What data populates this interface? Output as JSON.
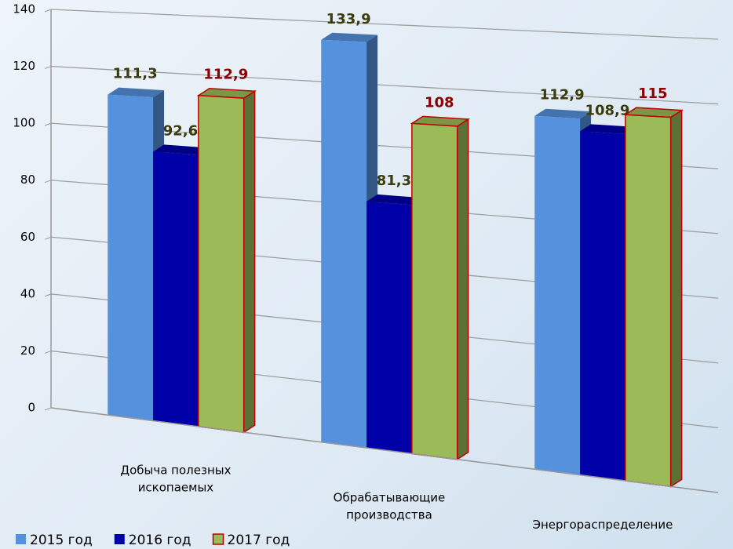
{
  "chart_data": {
    "type": "bar3d",
    "categories": [
      [
        "Добыча полезных",
        "ископаемых"
      ],
      [
        "Обрабатывающие",
        "производства"
      ],
      [
        "Энергораспределение"
      ]
    ],
    "series": [
      {
        "name": "2015 год",
        "color": "#5591dc",
        "label_color": "#3b3b0c",
        "values": [
          111.3,
          133.9,
          112.9
        ],
        "value_labels": [
          "111,3",
          "133,9",
          "112,9"
        ]
      },
      {
        "name": "2016 год",
        "color": "#0000a8",
        "label_color": "#3b3b0c",
        "values": [
          92.6,
          81.3,
          108.9
        ],
        "value_labels": [
          "92,6",
          "81,3",
          "108,9"
        ]
      },
      {
        "name": "2017 год",
        "color": "#9bbb59",
        "border": "#c00000",
        "label_color": "#8b0000",
        "values": [
          112.9,
          108,
          115
        ],
        "value_labels": [
          "112,9",
          "108",
          "115"
        ]
      }
    ],
    "ylim": [
      0,
      140
    ],
    "yticks": [
      0,
      20,
      40,
      60,
      80,
      100,
      120,
      140
    ],
    "grid": true,
    "legend": "bottom-left"
  }
}
